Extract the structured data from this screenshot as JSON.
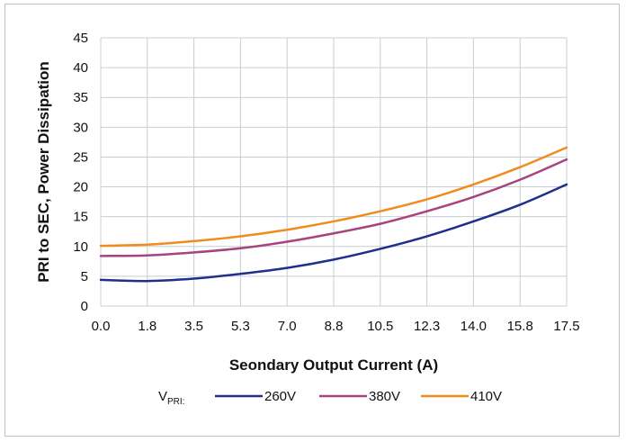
{
  "chart_data": {
    "type": "line",
    "xlabel": "Seondary Output Current (A)",
    "ylabel": "PRI to SEC, Power Dissipation",
    "x_ticks": [
      "0.0",
      "1.8",
      "3.5",
      "5.3",
      "7.0",
      "8.8",
      "10.5",
      "12.3",
      "14.0",
      "15.8",
      "17.5"
    ],
    "xlim": [
      0,
      17.5
    ],
    "ylim": [
      0,
      45
    ],
    "y_ticks": [
      0,
      5,
      10,
      15,
      20,
      25,
      30,
      35,
      40,
      45
    ],
    "grid": true,
    "legend": {
      "position": "bottom",
      "prefix_main": "V",
      "prefix_sub": "PRI:"
    },
    "series": [
      {
        "name": "260V",
        "color": "#1f2f8a",
        "x": [
          0,
          1.75,
          3.5,
          5.25,
          7.0,
          8.75,
          10.5,
          12.25,
          14.0,
          15.75,
          17.5
        ],
        "y": [
          4.4,
          4.2,
          4.6,
          5.4,
          6.4,
          7.8,
          9.6,
          11.7,
          14.2,
          17.0,
          20.4
        ]
      },
      {
        "name": "380V",
        "color": "#a8437e",
        "x": [
          0,
          1.75,
          3.5,
          5.25,
          7.0,
          8.75,
          10.5,
          12.25,
          14.0,
          15.75,
          17.5
        ],
        "y": [
          8.4,
          8.5,
          9.0,
          9.7,
          10.8,
          12.2,
          13.8,
          15.9,
          18.3,
          21.2,
          24.6
        ]
      },
      {
        "name": "410V",
        "color": "#f08c1e",
        "x": [
          0,
          1.75,
          3.5,
          5.25,
          7.0,
          8.75,
          10.5,
          12.25,
          14.0,
          15.75,
          17.5
        ],
        "y": [
          10.1,
          10.3,
          10.9,
          11.7,
          12.8,
          14.2,
          15.9,
          17.9,
          20.4,
          23.3,
          26.6
        ]
      }
    ]
  }
}
